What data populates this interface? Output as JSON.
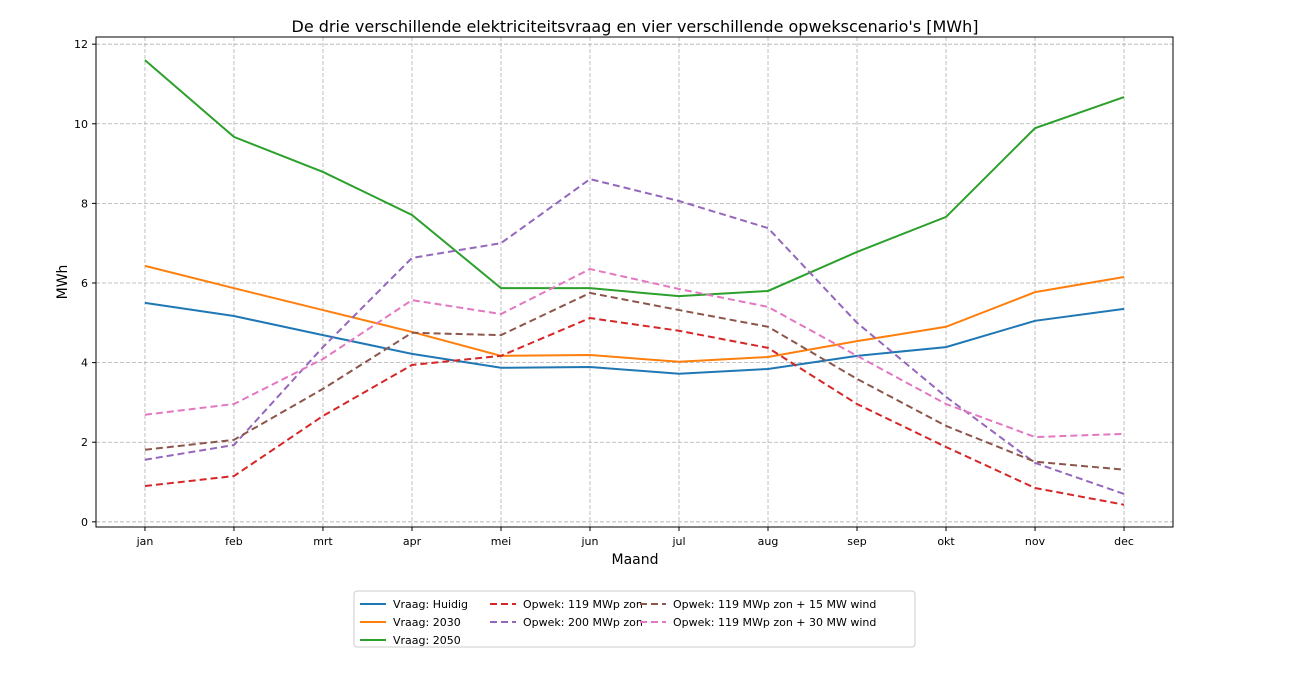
{
  "chart_data": {
    "type": "line",
    "title": "De drie verschillende elektriciteitsvraag en vier verschillende opwekscenario's [MWh]",
    "xlabel": "Maand",
    "ylabel": "MWh",
    "categories": [
      "jan",
      "feb",
      "mrt",
      "apr",
      "mei",
      "jun",
      "jul",
      "aug",
      "sep",
      "okt",
      "nov",
      "dec"
    ],
    "ylim": [
      -0.13,
      12.18
    ],
    "yticks": [
      0,
      2,
      4,
      6,
      8,
      10,
      12
    ],
    "grid": true,
    "legend_position": "bottom-center",
    "series": [
      {
        "name": "Vraag: Huidig",
        "color": "#1f77b4",
        "dash": false,
        "values": [
          5.5,
          5.17,
          4.69,
          4.22,
          3.87,
          3.89,
          3.72,
          3.84,
          4.17,
          4.39,
          5.05,
          5.35
        ]
      },
      {
        "name": "Vraag: 2030",
        "color": "#ff7f0e",
        "dash": false,
        "values": [
          6.43,
          5.87,
          5.32,
          4.77,
          4.17,
          4.19,
          4.02,
          4.14,
          4.54,
          4.9,
          5.77,
          6.15
        ]
      },
      {
        "name": "Vraag: 2050",
        "color": "#2ca02c",
        "dash": false,
        "values": [
          11.6,
          9.67,
          8.79,
          7.71,
          5.87,
          5.87,
          5.67,
          5.8,
          6.78,
          7.66,
          9.89,
          10.67
        ]
      },
      {
        "name": "Opwek: 119 MWp zon",
        "color": "#d62728",
        "dash": true,
        "values": [
          0.9,
          1.15,
          2.66,
          3.94,
          4.17,
          5.12,
          4.8,
          4.37,
          2.96,
          1.88,
          0.85,
          0.43
        ]
      },
      {
        "name": "Opwek: 200 MWp zon",
        "color": "#9467bd",
        "dash": true,
        "values": [
          1.56,
          1.93,
          4.39,
          6.63,
          7.0,
          8.61,
          8.06,
          7.38,
          5.0,
          3.14,
          1.48,
          0.7
        ]
      },
      {
        "name": "Opwek: 119 MWp zon + 15 MW wind",
        "color": "#8c564b",
        "dash": true,
        "values": [
          1.81,
          2.06,
          3.34,
          4.75,
          4.69,
          5.75,
          5.32,
          4.9,
          3.59,
          2.41,
          1.51,
          1.31
        ]
      },
      {
        "name": "Opwek: 119 MWp zon + 30 MW wind",
        "color": "#e377c2",
        "dash": true,
        "values": [
          2.69,
          2.96,
          4.09,
          5.57,
          5.22,
          6.35,
          5.85,
          5.4,
          4.17,
          2.96,
          2.13,
          2.21
        ]
      }
    ]
  }
}
